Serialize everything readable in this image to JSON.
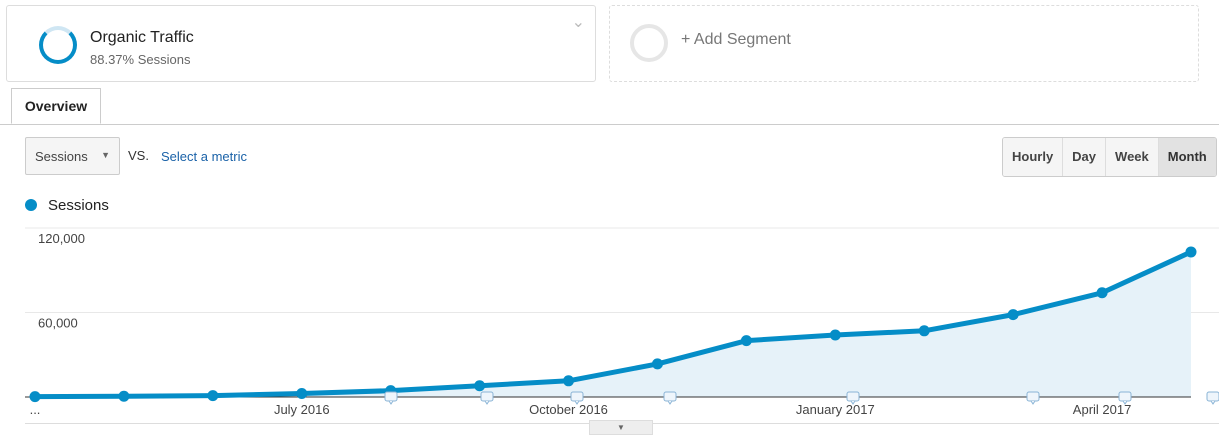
{
  "segments": {
    "active": {
      "title": "Organic Traffic",
      "subtitle": "88.37% Sessions"
    },
    "add_label": "+ Add Segment"
  },
  "tabs": [
    {
      "label": "Overview"
    }
  ],
  "controls": {
    "metric_select": "Sessions",
    "vs": "VS.",
    "select_metric": "Select a metric",
    "granularity": [
      "Hourly",
      "Day",
      "Week",
      "Month"
    ],
    "active_granularity": "Month"
  },
  "colors": {
    "series": "#058dc7",
    "area": "#e6f2f9"
  },
  "chart_data": {
    "type": "area",
    "legend": "top-left",
    "series": [
      {
        "name": "Sessions",
        "values": [
          300,
          500,
          1000,
          2500,
          4500,
          8000,
          11500,
          23500,
          40000,
          44000,
          47000,
          58500,
          74000,
          103000
        ]
      }
    ],
    "x": [
      "Apr 2016",
      "May 2016",
      "Jun 2016",
      "Jul 2016",
      "Aug 2016",
      "Sep 2016",
      "Oct 2016",
      "Nov 2016",
      "Dec 2016",
      "Jan 2017",
      "Feb 2017",
      "Mar 2017",
      "Apr 2017",
      "May 2017"
    ],
    "x_tick_labels": [
      {
        "index": 0,
        "label": "..."
      },
      {
        "index": 3,
        "label": "July 2016"
      },
      {
        "index": 6,
        "label": "October 2016"
      },
      {
        "index": 9,
        "label": "January 2017"
      },
      {
        "index": 12,
        "label": "April 2017"
      }
    ],
    "y_tick_labels": [
      "120,000",
      "60,000"
    ],
    "yticks": [
      120000,
      60000
    ],
    "ylim": [
      0,
      120000
    ],
    "grid": true,
    "annotation_icons": "comment-icon"
  }
}
